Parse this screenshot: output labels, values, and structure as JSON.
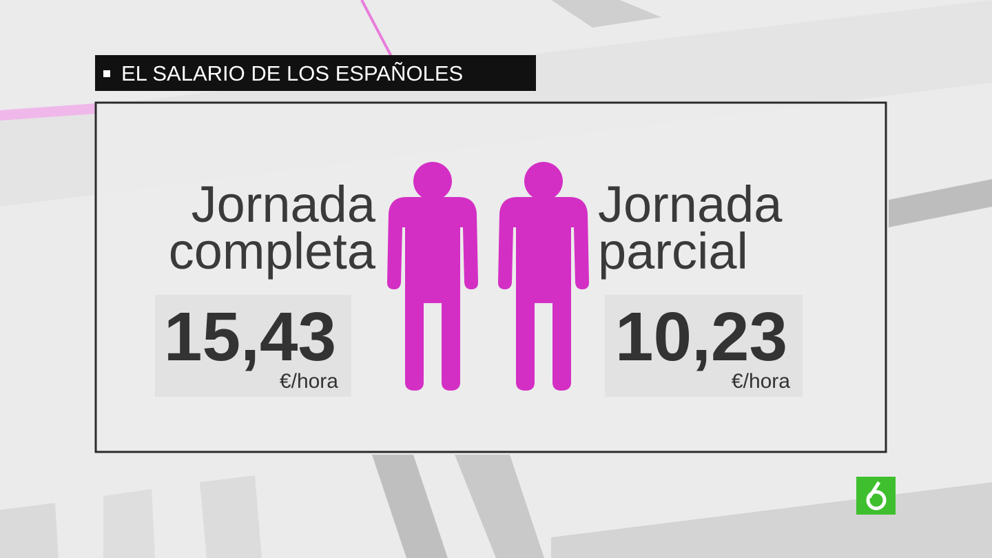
{
  "header": {
    "title": "EL SALARIO DE LOS ESPAÑOLES"
  },
  "panels": [
    {
      "label_lines": [
        "Jornada",
        "completa"
      ],
      "value": "15,43",
      "unit": "€/hora"
    },
    {
      "label_lines": [
        "Jornada",
        "parcial"
      ],
      "value": "10,23",
      "unit": "€/hora"
    }
  ]
}
